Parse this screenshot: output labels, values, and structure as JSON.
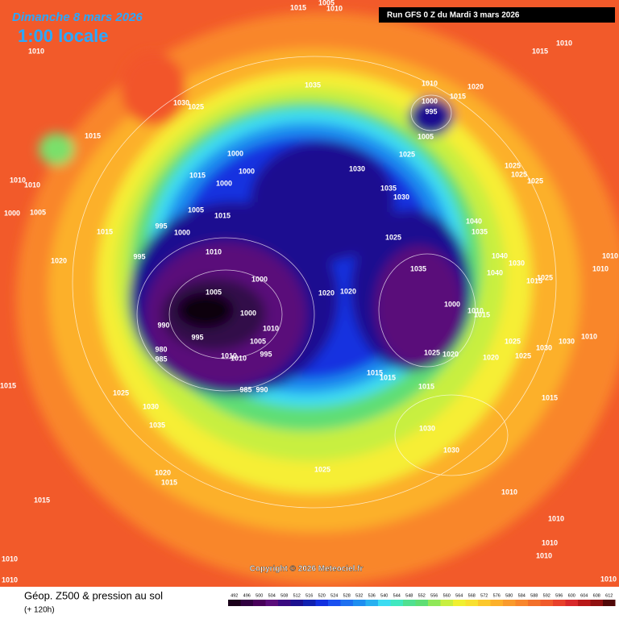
{
  "header": {
    "title": "Dimanche 8 mars 2026",
    "time": "1:00 locale",
    "run": "Run GFS 0 Z du Mardi 3 mars 2026"
  },
  "isobar_labels": [
    1015,
    1005,
    1010,
    1010,
    1010,
    1015,
    1030,
    1025,
    1035,
    1010,
    1020,
    1015,
    1000,
    995,
    1005,
    1015,
    1025,
    1030,
    1025,
    1025,
    1025,
    1000,
    1000,
    1015,
    1000,
    1010,
    1010,
    1035,
    1030,
    1000,
    1005,
    1005,
    1015,
    995,
    1000,
    1040,
    1035,
    1025,
    1015,
    995,
    1010,
    1020,
    1040,
    1030,
    1010,
    1035,
    1000,
    1040,
    1025,
    1010,
    1015,
    1005,
    1020,
    1020,
    1000,
    1010,
    1015,
    1000,
    990,
    995,
    1010,
    1005,
    1030,
    1025,
    1010,
    980,
    985,
    995,
    1010,
    1010,
    1025,
    1020,
    1020,
    1025,
    1030,
    1015,
    1015,
    985,
    990,
    1015,
    1015,
    1025,
    1015,
    1030,
    1035,
    1030,
    1030,
    1025,
    1020,
    1015,
    1010,
    1015,
    1010,
    1010,
    1010,
    1010,
    1010,
    1010
  ],
  "footer": {
    "copyright": "Copyright © 2026 Meteociel.fr",
    "legend_title": "Géop. Z500 & pression au sol",
    "lead": "(+ 120h)",
    "scale": [
      492,
      496,
      500,
      504,
      508,
      512,
      516,
      520,
      524,
      528,
      532,
      536,
      540,
      544,
      548,
      552,
      556,
      560,
      564,
      568,
      572,
      576,
      580,
      584,
      588,
      592,
      596,
      600,
      604,
      608,
      612
    ]
  }
}
